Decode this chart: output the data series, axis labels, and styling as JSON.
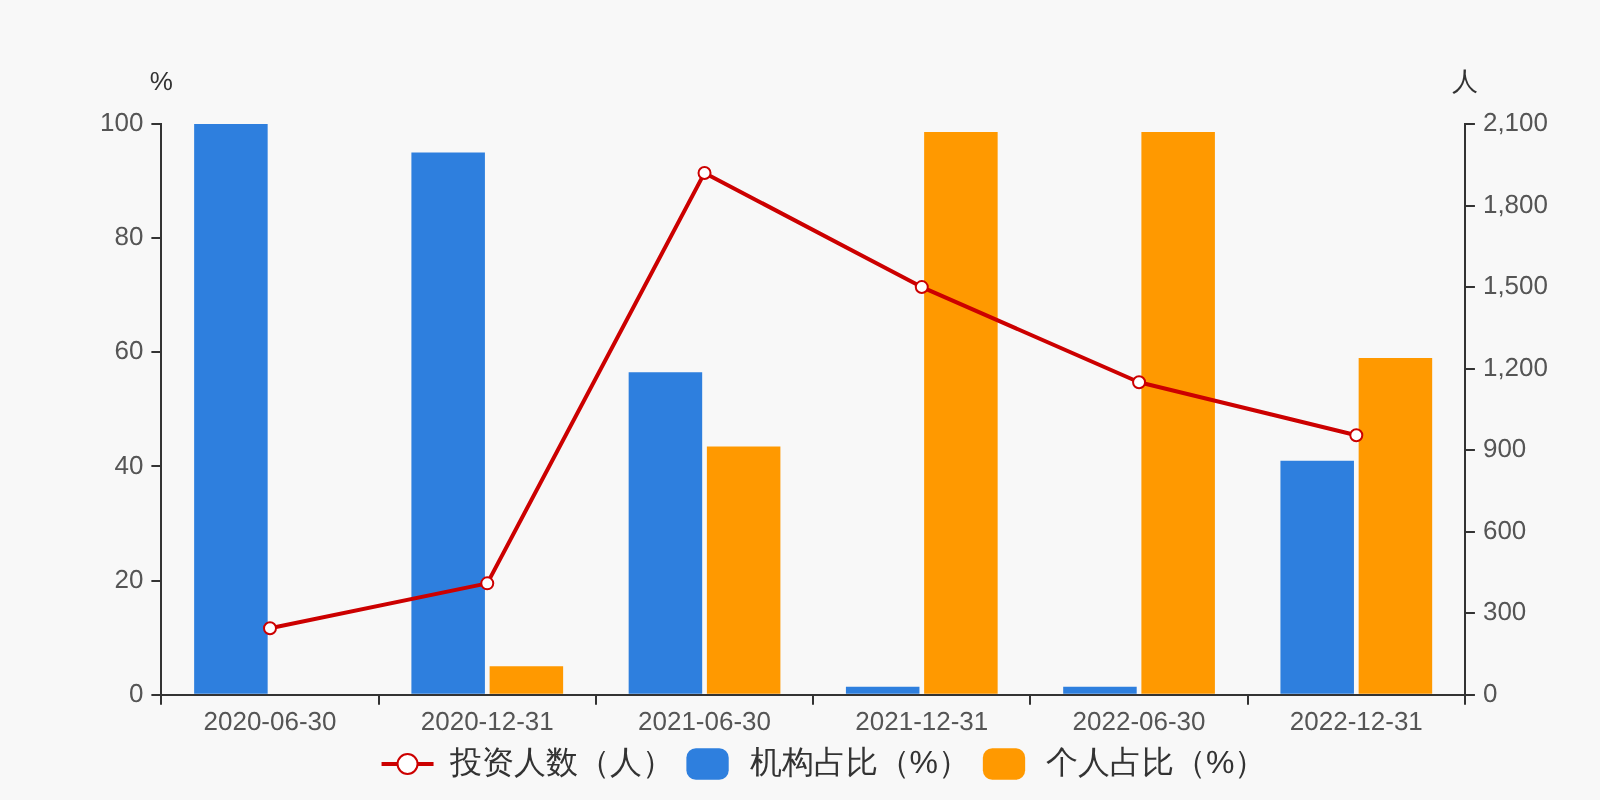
{
  "chart_data": {
    "type": "bar",
    "categories": [
      "2020-06-30",
      "2020-12-31",
      "2021-06-30",
      "2021-12-31",
      "2022-06-30",
      "2022-12-31"
    ],
    "series": [
      {
        "name": "投资人数（人）",
        "type": "line",
        "axis": "y2",
        "color": "#cc0000",
        "values": [
          245,
          410,
          1920,
          1500,
          1150,
          955
        ]
      },
      {
        "name": "机构占比（%）",
        "color": "#2e7fde",
        "values": [
          100,
          95,
          56.5,
          1.4,
          1.4,
          41
        ]
      },
      {
        "name": "个人占比（%）",
        "color": "#ff9900",
        "values": [
          0,
          5,
          43.5,
          98.6,
          98.6,
          59
        ]
      }
    ],
    "ylabel": "%",
    "y2label": "人",
    "ylim": [
      0,
      100
    ],
    "yticks": [
      0,
      20,
      40,
      60,
      80,
      100
    ],
    "y2lim": [
      0,
      2100
    ],
    "y2ticks": [
      0,
      300,
      600,
      900,
      {
        "value": 1200,
        "label": "1,200"
      },
      {
        "value": 1500,
        "label": "1,500"
      },
      {
        "value": 1800,
        "label": "1,800"
      },
      {
        "value": 2100,
        "label": "2,100"
      }
    ],
    "grid": false,
    "legend": "bottom",
    "marker": "circle",
    "line_style": "solid"
  }
}
